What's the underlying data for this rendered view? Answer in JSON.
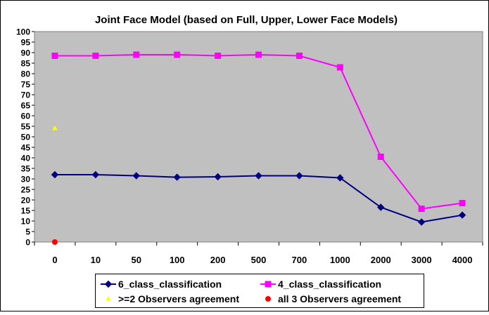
{
  "chart_data": {
    "type": "line",
    "title": "Joint Face Model (based on Full, Upper, Lower Face Models)",
    "xlabel": "",
    "ylabel": "",
    "categories": [
      "0",
      "10",
      "50",
      "100",
      "200",
      "500",
      "700",
      "1000",
      "2000",
      "3000",
      "4000"
    ],
    "ylim": [
      0,
      100
    ],
    "yticks": [
      "0",
      "5",
      "10",
      "15",
      "20",
      "25",
      "30",
      "35",
      "40",
      "45",
      "50",
      "55",
      "60",
      "65",
      "70",
      "75",
      "80",
      "85",
      "90",
      "95",
      "100"
    ],
    "plot_background": "#c0c0c0",
    "grid": false,
    "legend_position": "bottom",
    "series": [
      {
        "name": "6_class_classification",
        "color": "#000080",
        "marker": "diamond",
        "values": [
          32,
          32,
          31.5,
          30.8,
          31,
          31.5,
          31.5,
          30.5,
          16.5,
          9.5,
          12.8
        ]
      },
      {
        "name": "4_class_classification",
        "color": "#ff00ff",
        "marker": "square",
        "values": [
          88.5,
          88.5,
          89,
          89,
          88.5,
          89,
          88.5,
          83,
          40.5,
          15.8,
          18.5
        ]
      }
    ],
    "points": [
      {
        "name": ">=2 Observers agreement",
        "color": "#ffff00",
        "marker": "triangle",
        "category": "0",
        "value": 54
      },
      {
        "name": "all 3 Observers agreement",
        "color": "#ff0000",
        "marker": "circle",
        "category": "0",
        "value": 0
      }
    ]
  }
}
